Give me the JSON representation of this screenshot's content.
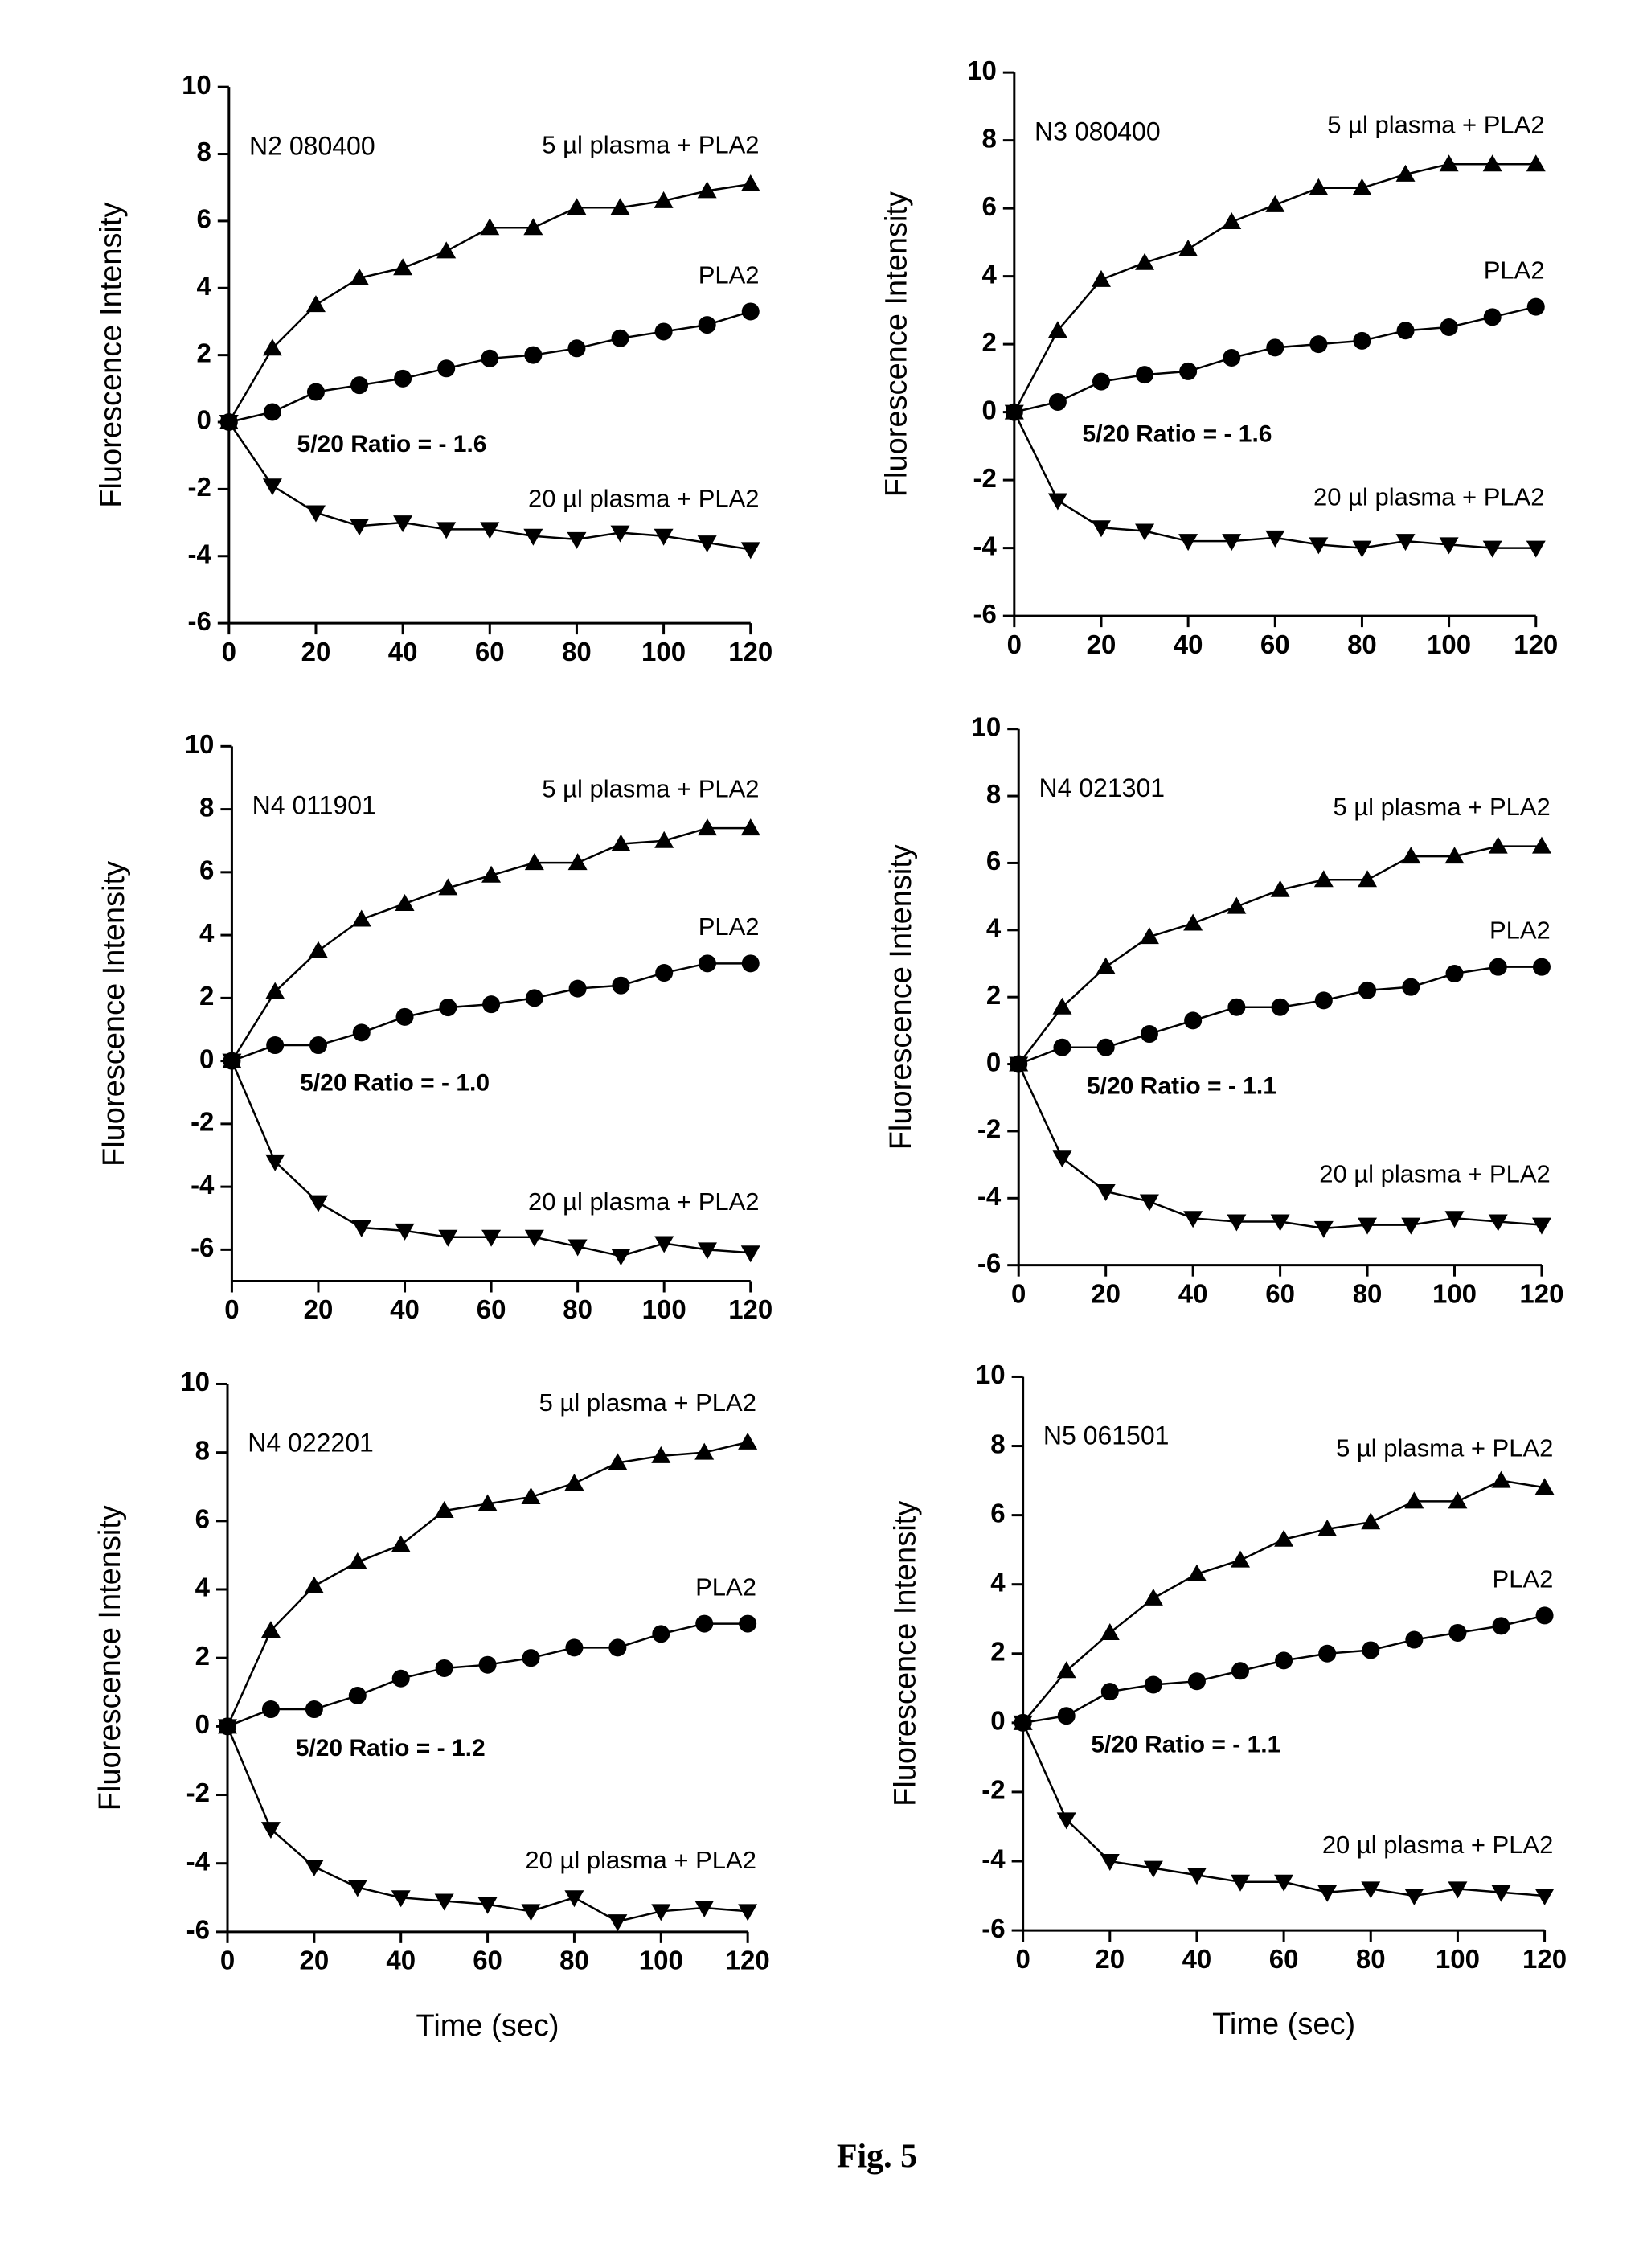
{
  "chart_data": [
    {
      "type": "line",
      "x": [
        0,
        10,
        20,
        30,
        40,
        50,
        60,
        70,
        80,
        90,
        100,
        110,
        120
      ],
      "xlim": [
        0,
        120
      ],
      "xticks": [
        0,
        20,
        40,
        60,
        80,
        100,
        120
      ],
      "ylim": [
        -6,
        10
      ],
      "yticks": [
        -6,
        -4,
        -2,
        0,
        2,
        4,
        6,
        8,
        10
      ],
      "ylabel": "Fluorescence Intensity",
      "annotations": [
        "N2 080400",
        "5/20 Ratio = - 1.6"
      ],
      "series": [
        {
          "name": "5 µl plasma + PLA2",
          "color": "#000000",
          "marker": "triangle-up",
          "values": [
            0,
            2.2,
            3.5,
            4.3,
            4.6,
            5.1,
            5.8,
            5.8,
            6.4,
            6.4,
            6.6,
            6.9,
            7.1
          ]
        },
        {
          "name": "PLA2",
          "color": "#000000",
          "marker": "circle",
          "values": [
            0,
            0.3,
            0.9,
            1.1,
            1.3,
            1.6,
            1.9,
            2.0,
            2.2,
            2.5,
            2.7,
            2.9,
            3.3
          ]
        },
        {
          "name": "20 µl plasma + PLA2",
          "color": "#000000",
          "marker": "triangle-down",
          "values": [
            0,
            -1.9,
            -2.7,
            -3.1,
            -3.0,
            -3.2,
            -3.2,
            -3.4,
            -3.5,
            -3.3,
            -3.4,
            -3.6,
            -3.8
          ]
        }
      ]
    },
    {
      "type": "line",
      "x": [
        0,
        10,
        20,
        30,
        40,
        50,
        60,
        70,
        80,
        90,
        100,
        110,
        120
      ],
      "xlim": [
        0,
        120
      ],
      "xticks": [
        0,
        20,
        40,
        60,
        80,
        100,
        120
      ],
      "ylim": [
        -6,
        10
      ],
      "yticks": [
        -6,
        -4,
        -2,
        0,
        2,
        4,
        6,
        8,
        10
      ],
      "ylabel": "Fluorescence Intensity",
      "annotations": [
        "N3 080400",
        "5/20 Ratio = - 1.6"
      ],
      "series": [
        {
          "name": "5 µl plasma + PLA2",
          "color": "#000000",
          "marker": "triangle-up",
          "values": [
            0,
            2.4,
            3.9,
            4.4,
            4.8,
            5.6,
            6.1,
            6.6,
            6.6,
            7.0,
            7.3,
            7.3,
            7.3
          ]
        },
        {
          "name": "PLA2",
          "color": "#000000",
          "marker": "circle",
          "values": [
            0,
            0.3,
            0.9,
            1.1,
            1.2,
            1.6,
            1.9,
            2.0,
            2.1,
            2.4,
            2.5,
            2.8,
            3.1
          ]
        },
        {
          "name": "20 µl plasma + PLA2",
          "color": "#000000",
          "marker": "triangle-down",
          "values": [
            0,
            -2.6,
            -3.4,
            -3.5,
            -3.8,
            -3.8,
            -3.7,
            -3.9,
            -4.0,
            -3.8,
            -3.9,
            -4.0,
            -4.0
          ]
        }
      ]
    },
    {
      "type": "line",
      "x": [
        0,
        10,
        20,
        30,
        40,
        50,
        60,
        70,
        80,
        90,
        100,
        110,
        120
      ],
      "xlim": [
        0,
        120
      ],
      "xticks": [
        0,
        20,
        40,
        60,
        80,
        100,
        120
      ],
      "ylim": [
        -7,
        10
      ],
      "yticks": [
        -6,
        -4,
        -2,
        0,
        2,
        4,
        6,
        8,
        10
      ],
      "ylabel": "Fluorescence Intensity",
      "annotations": [
        "N4 011901",
        "5/20 Ratio = - 1.0"
      ],
      "series": [
        {
          "name": "5 µl plasma + PLA2",
          "color": "#000000",
          "marker": "triangle-up",
          "values": [
            0,
            2.2,
            3.5,
            4.5,
            5.0,
            5.5,
            5.9,
            6.3,
            6.3,
            6.9,
            7.0,
            7.4,
            7.4
          ]
        },
        {
          "name": "PLA2",
          "color": "#000000",
          "marker": "circle",
          "values": [
            0,
            0.5,
            0.5,
            0.9,
            1.4,
            1.7,
            1.8,
            2.0,
            2.3,
            2.4,
            2.8,
            3.1,
            3.1
          ]
        },
        {
          "name": "20 µl plasma + PLA2",
          "color": "#000000",
          "marker": "triangle-down",
          "values": [
            0,
            -3.2,
            -4.5,
            -5.3,
            -5.4,
            -5.6,
            -5.6,
            -5.6,
            -5.9,
            -6.2,
            -5.8,
            -6.0,
            -6.1
          ]
        }
      ]
    },
    {
      "type": "line",
      "x": [
        0,
        10,
        20,
        30,
        40,
        50,
        60,
        70,
        80,
        90,
        100,
        110,
        120
      ],
      "xlim": [
        0,
        120
      ],
      "xticks": [
        0,
        20,
        40,
        60,
        80,
        100,
        120
      ],
      "ylim": [
        -6,
        10
      ],
      "yticks": [
        -6,
        -4,
        -2,
        0,
        2,
        4,
        6,
        8,
        10
      ],
      "ylabel": "Fluorescence Intensity",
      "annotations": [
        "N4 021301",
        "5/20 Ratio = - 1.1"
      ],
      "series": [
        {
          "name": "5 µl plasma + PLA2",
          "color": "#000000",
          "marker": "triangle-up",
          "values": [
            0,
            1.7,
            2.9,
            3.8,
            4.2,
            4.7,
            5.2,
            5.5,
            5.5,
            6.2,
            6.2,
            6.5,
            6.5
          ]
        },
        {
          "name": "PLA2",
          "color": "#000000",
          "marker": "circle",
          "values": [
            0,
            0.5,
            0.5,
            0.9,
            1.3,
            1.7,
            1.7,
            1.9,
            2.2,
            2.3,
            2.7,
            2.9,
            2.9
          ]
        },
        {
          "name": "20 µl plasma + PLA2",
          "color": "#000000",
          "marker": "triangle-down",
          "values": [
            0,
            -2.8,
            -3.8,
            -4.1,
            -4.6,
            -4.7,
            -4.7,
            -4.9,
            -4.8,
            -4.8,
            -4.6,
            -4.7,
            -4.8
          ]
        }
      ]
    },
    {
      "type": "line",
      "x": [
        0,
        10,
        20,
        30,
        40,
        50,
        60,
        70,
        80,
        90,
        100,
        110,
        120
      ],
      "xlim": [
        0,
        120
      ],
      "xticks": [
        0,
        20,
        40,
        60,
        80,
        100,
        120
      ],
      "ylim": [
        -6,
        10
      ],
      "yticks": [
        -6,
        -4,
        -2,
        0,
        2,
        4,
        6,
        8,
        10
      ],
      "ylabel": "Fluorescence Intensity",
      "xlabel": "Time (sec)",
      "annotations": [
        "N4 022201",
        "5/20 Ratio = - 1.2"
      ],
      "series": [
        {
          "name": "5 µl plasma + PLA2",
          "color": "#000000",
          "marker": "triangle-up",
          "values": [
            0,
            2.8,
            4.1,
            4.8,
            5.3,
            6.3,
            6.5,
            6.7,
            7.1,
            7.7,
            7.9,
            8.0,
            8.3
          ]
        },
        {
          "name": "PLA2",
          "color": "#000000",
          "marker": "circle",
          "values": [
            0,
            0.5,
            0.5,
            0.9,
            1.4,
            1.7,
            1.8,
            2.0,
            2.3,
            2.3,
            2.7,
            3.0,
            3.0
          ]
        },
        {
          "name": "20 µl plasma + PLA2",
          "color": "#000000",
          "marker": "triangle-down",
          "values": [
            0,
            -3.0,
            -4.1,
            -4.7,
            -5.0,
            -5.1,
            -5.2,
            -5.4,
            -5.0,
            -5.7,
            -5.4,
            -5.3,
            -5.4
          ]
        }
      ]
    },
    {
      "type": "line",
      "x": [
        0,
        10,
        20,
        30,
        40,
        50,
        60,
        70,
        80,
        90,
        100,
        110,
        120
      ],
      "xlim": [
        0,
        120
      ],
      "xticks": [
        0,
        20,
        40,
        60,
        80,
        100,
        120
      ],
      "ylim": [
        -6,
        10
      ],
      "yticks": [
        -6,
        -4,
        -2,
        0,
        2,
        4,
        6,
        8,
        10
      ],
      "ylabel": "Fluorescence Intensity",
      "xlabel": "Time (sec)",
      "annotations": [
        "N5 061501",
        "5/20 Ratio = - 1.1"
      ],
      "series": [
        {
          "name": "5 µl plasma + PLA2",
          "color": "#000000",
          "marker": "triangle-up",
          "values": [
            0,
            1.5,
            2.6,
            3.6,
            4.3,
            4.7,
            5.3,
            5.6,
            5.8,
            6.4,
            6.4,
            7.0,
            6.8
          ]
        },
        {
          "name": "PLA2",
          "color": "#000000",
          "marker": "circle",
          "values": [
            0,
            0.2,
            0.9,
            1.1,
            1.2,
            1.5,
            1.8,
            2.0,
            2.1,
            2.4,
            2.6,
            2.8,
            3.1
          ]
        },
        {
          "name": "20 µl plasma + PLA2",
          "color": "#000000",
          "marker": "triangle-down",
          "values": [
            0,
            -2.8,
            -4.0,
            -4.2,
            -4.4,
            -4.6,
            -4.6,
            -4.9,
            -4.8,
            -5.0,
            -4.8,
            -4.9,
            -5.0
          ]
        }
      ]
    }
  ],
  "caption": "Fig. 5"
}
